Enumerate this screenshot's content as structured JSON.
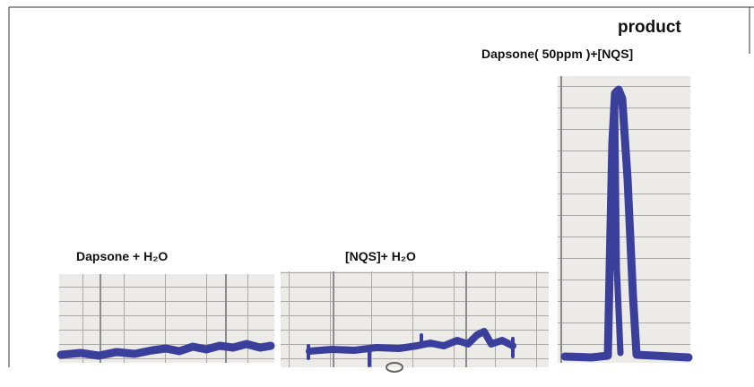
{
  "panels": [
    {
      "label": "Dapsone + H₂O"
    },
    {
      "label": "[NQS]+ H₂O"
    },
    {
      "title": "product",
      "label": "Dapsone( 50ppm )+[NQS]"
    }
  ]
}
